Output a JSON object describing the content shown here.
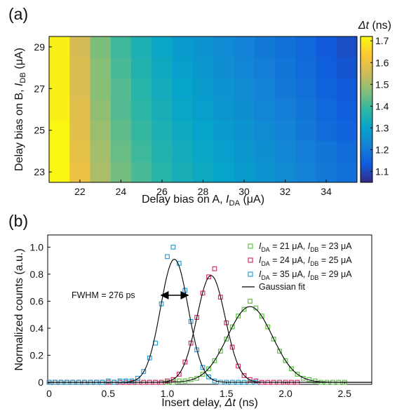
{
  "chart_data": [
    {
      "type": "heatmap",
      "panel_label": "(a)",
      "xlabel": {
        "text": "Delay bias on A, ",
        "symbol": "I",
        "subscript": "DA",
        "unit": " (μA)"
      },
      "ylabel": {
        "text": "Delay bias on B, ",
        "symbol": "I",
        "subscript": "DB",
        "unit": " (μA)"
      },
      "colorbar_label": {
        "symbol": "Δt",
        "unit": " (ns)"
      },
      "x": [
        21,
        22,
        23,
        24,
        25,
        26,
        27,
        28,
        29,
        30,
        31,
        32,
        33,
        34,
        35
      ],
      "y": [
        23,
        24,
        25,
        26,
        27,
        28,
        29
      ],
      "z": [
        [
          1.71,
          1.6,
          1.51,
          1.45,
          1.41,
          1.37,
          1.34,
          1.32,
          1.3,
          1.28,
          1.26,
          1.24,
          1.22,
          1.2,
          1.18
        ],
        [
          1.71,
          1.59,
          1.5,
          1.44,
          1.4,
          1.36,
          1.33,
          1.31,
          1.29,
          1.27,
          1.25,
          1.23,
          1.21,
          1.19,
          1.17
        ],
        [
          1.71,
          1.58,
          1.49,
          1.43,
          1.39,
          1.35,
          1.32,
          1.3,
          1.28,
          1.26,
          1.24,
          1.22,
          1.2,
          1.17,
          1.15
        ],
        [
          1.7,
          1.58,
          1.48,
          1.42,
          1.38,
          1.34,
          1.31,
          1.29,
          1.27,
          1.25,
          1.23,
          1.21,
          1.19,
          1.16,
          1.14
        ],
        [
          1.7,
          1.57,
          1.47,
          1.42,
          1.37,
          1.33,
          1.3,
          1.28,
          1.26,
          1.24,
          1.22,
          1.2,
          1.18,
          1.15,
          1.13
        ],
        [
          1.7,
          1.57,
          1.47,
          1.41,
          1.36,
          1.32,
          1.29,
          1.27,
          1.25,
          1.23,
          1.21,
          1.19,
          1.17,
          1.14,
          1.12
        ],
        [
          1.7,
          1.56,
          1.46,
          1.4,
          1.35,
          1.31,
          1.28,
          1.26,
          1.24,
          1.22,
          1.2,
          1.18,
          1.16,
          1.13,
          1.11
        ]
      ],
      "xlim": [
        20.5,
        35.5
      ],
      "ylim": [
        22.5,
        29.5
      ],
      "xticks": [
        22,
        24,
        26,
        28,
        30,
        32,
        34
      ],
      "yticks": [
        23,
        25,
        27,
        29
      ],
      "clim": [
        1.05,
        1.72
      ],
      "cticks": [
        1.1,
        1.2,
        1.3,
        1.4,
        1.5,
        1.6,
        1.7
      ],
      "colormap": [
        "#352a87",
        "#0f5cdd",
        "#1481d6",
        "#06a4ca",
        "#2eb7a4",
        "#87bf77",
        "#d1bb59",
        "#fec832",
        "#f9fb0e"
      ]
    },
    {
      "type": "scatter",
      "panel_label": "(b)",
      "xlabel": {
        "text": "Insert delay, ",
        "symbol": "Δt",
        "unit": " (ns)"
      },
      "ylabel": {
        "text": "Normalized counts (a.u.)"
      },
      "annotation": "FWHM = 276 ps",
      "x": [
        0,
        0.05,
        0.1,
        0.15,
        0.2,
        0.25,
        0.3,
        0.35,
        0.4,
        0.45,
        0.5,
        0.55,
        0.6,
        0.65,
        0.7,
        0.75,
        0.8,
        0.85,
        0.9,
        0.95,
        1.0,
        1.05,
        1.1,
        1.15,
        1.2,
        1.25,
        1.3,
        1.35,
        1.4,
        1.45,
        1.5,
        1.55,
        1.6,
        1.65,
        1.7,
        1.75,
        1.8,
        1.85,
        1.9,
        1.95,
        2.0,
        2.05,
        2.1,
        2.15,
        2.2,
        2.25,
        2.3,
        2.35,
        2.4,
        2.45,
        2.5
      ],
      "series": [
        {
          "name": [
            "I",
            "DA",
            " = 21 μA, ",
            "I",
            "DB",
            " = 23 μA"
          ],
          "color": "#5fbf45",
          "values": [
            0,
            0,
            0,
            0,
            0,
            0,
            0,
            0,
            0,
            0,
            0,
            0,
            0,
            0,
            0,
            0,
            0,
            0,
            0,
            0,
            0,
            0,
            0.01,
            0.01,
            0.02,
            0.03,
            0.06,
            0.1,
            0.16,
            0.23,
            0.32,
            0.41,
            0.49,
            0.54,
            0.6,
            0.55,
            0.49,
            0.41,
            0.32,
            0.23,
            0.16,
            0.1,
            0.06,
            0.03,
            0.02,
            0.01,
            0,
            0,
            0,
            0,
            0
          ],
          "fit": {
            "amplitude": 0.56,
            "center": 1.7,
            "sigma": 0.19
          }
        },
        {
          "name": [
            "I",
            "DA",
            " = 24 μA, ",
            "I",
            "DB",
            " = 25 μA"
          ],
          "color": "#d6306e",
          "values": [
            0,
            0,
            0,
            0,
            0,
            0,
            0,
            0,
            0,
            0,
            0,
            0,
            0,
            0,
            0,
            0,
            0,
            0,
            0,
            0,
            0.01,
            0.02,
            0.06,
            0.15,
            0.29,
            0.48,
            0.66,
            0.78,
            0.84,
            0.63,
            0.44,
            0.26,
            0.12,
            0.05,
            0.02,
            0.01,
            0,
            0,
            0,
            0,
            0,
            0,
            0,
            null,
            null,
            null,
            null,
            null,
            null,
            null,
            null
          ],
          "fit": {
            "amplitude": 0.79,
            "center": 1.37,
            "sigma": 0.12
          }
        },
        {
          "name": [
            "I",
            "DA",
            " = 35 μA, ",
            "I",
            "DB",
            " = 29 μA"
          ],
          "color": "#2a9fd8",
          "values": [
            0,
            0,
            0,
            0,
            0,
            0,
            0,
            0,
            0,
            0,
            0.01,
            0,
            0.01,
            0.01,
            0.01,
            0.03,
            0.08,
            0.18,
            0.29,
            0.58,
            0.93,
            1.0,
            0.88,
            0.68,
            0.45,
            0.24,
            0.11,
            0.04,
            0.01,
            0,
            0,
            0,
            0,
            0,
            0,
            0,
            null,
            null,
            null,
            null,
            null,
            null,
            null,
            null,
            null,
            null,
            null,
            null,
            null,
            null,
            null
          ],
          "fit": {
            "amplitude": 0.91,
            "center": 1.06,
            "sigma": 0.117
          }
        }
      ],
      "fit_legend": {
        "name": "Gaussian fit",
        "color": "#000000"
      },
      "xlim": [
        -0.012,
        2.73
      ],
      "ylim": [
        -0.015,
        1.09
      ],
      "xticks": [
        0,
        0.5,
        {
          "value": 1,
          "label": "1.0"
        },
        1.5,
        {
          "value": 2,
          "label": "2.0"
        },
        2.5
      ],
      "yticks": [
        0,
        0.2,
        0.4,
        0.6,
        0.8,
        {
          "value": 1,
          "label": "1.0"
        }
      ]
    }
  ]
}
